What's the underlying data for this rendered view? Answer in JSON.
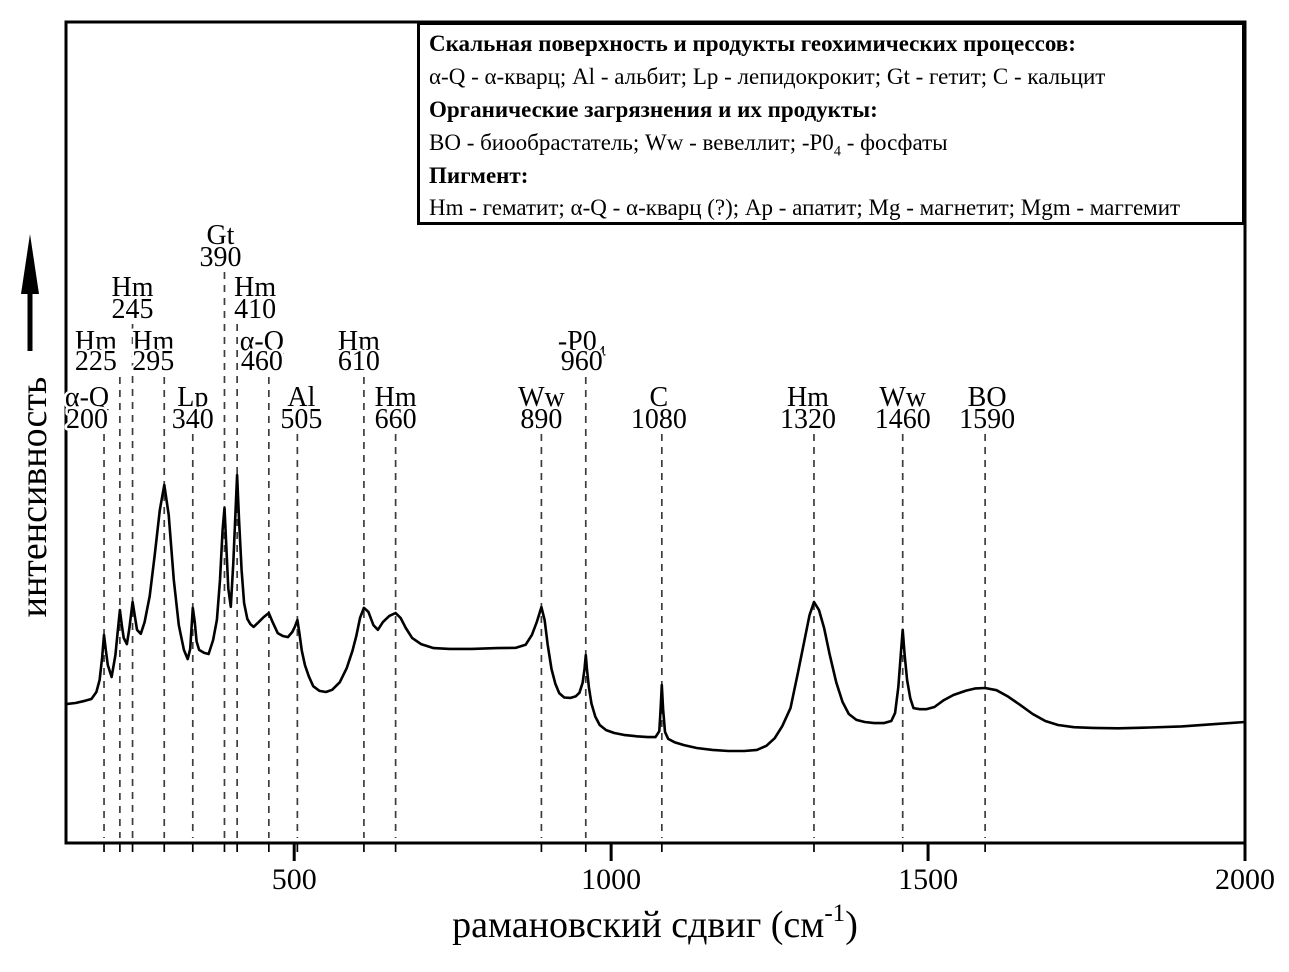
{
  "figure": {
    "background": "#ffffff",
    "ink_color": "#000000",
    "dash_color": "#3d3d3d"
  },
  "legend": {
    "line1": "Скальная поверхность и продукты геохимических процессов:",
    "line2": "α-Q - α-кварц; Al - альбит; Lp - лепидокрокит; Gt - гетит; C - кальцит",
    "line3": "Органические загрязнения и их продукты:",
    "line4_pre": "BO - биообрастатель; Ww - вевеллит; -P0",
    "line4_sub": "4",
    "line4_post": " - фосфаты",
    "line5": "Пигмент:",
    "line6": "Hm - гематит; α-Q - α-кварц (?); Ap - апатит; Mg - магнетит; Mgm - маггемит"
  },
  "chart_data": {
    "type": "line",
    "title": "",
    "xlabel_pre": "рамановский сдвиг (см",
    "xlabel_sup": "-1",
    "xlabel_post": ")",
    "ylabel": "интенсивность",
    "x_range": [
      140,
      2000
    ],
    "x_ticks": [
      500,
      1000,
      1500,
      2000
    ],
    "y_axis": "arbitrary intensity, no ticks",
    "grid": false,
    "legend_position": "top-right",
    "peaks": [
      {
        "name": "α-Q",
        "value": 200,
        "row": 3,
        "label_dx": -17
      },
      {
        "name": "Hm",
        "value": 225,
        "row": 2,
        "label_dx": -24
      },
      {
        "name": "Hm",
        "value": 245,
        "row": 1,
        "label_dx": 0
      },
      {
        "name": "Hm",
        "value": 295,
        "row": 2,
        "label_dx": -11
      },
      {
        "name": "Lp",
        "value": 340,
        "row": 3,
        "label_dx": 0
      },
      {
        "name": "Gt",
        "value": 390,
        "row": 0,
        "label_dx": -4
      },
      {
        "name": "Hm",
        "value": 410,
        "row": 1,
        "label_dx": 18
      },
      {
        "name": "α-Q",
        "value": 460,
        "row": 2,
        "label_dx": -7
      },
      {
        "name": "Al",
        "value": 505,
        "row": 3,
        "label_dx": 4
      },
      {
        "name": "Hm",
        "value": 610,
        "row": 2,
        "label_dx": -5
      },
      {
        "name": "Hm",
        "value": 660,
        "row": 3,
        "label_dx": 0
      },
      {
        "name": "Ww",
        "value": 890,
        "row": 3,
        "label_dx": 0
      },
      {
        "name": "-P0",
        "name_sub": "4",
        "value": 960,
        "row": 2,
        "label_dx": -4
      },
      {
        "name": "C",
        "value": 1080,
        "row": 3,
        "label_dx": -3
      },
      {
        "name": "Hm",
        "value": 1320,
        "row": 3,
        "label_dx": -6
      },
      {
        "name": "Ww",
        "value": 1460,
        "row": 3,
        "label_dx": 0
      },
      {
        "name": "BO",
        "value": 1590,
        "row": 3,
        "label_dx": 2
      }
    ],
    "profile": [
      [
        140,
        0.374
      ],
      [
        155,
        0.377
      ],
      [
        170,
        0.383
      ],
      [
        180,
        0.388
      ],
      [
        188,
        0.407
      ],
      [
        193,
        0.44
      ],
      [
        197,
        0.5
      ],
      [
        200,
        0.563
      ],
      [
        203,
        0.52
      ],
      [
        206,
        0.481
      ],
      [
        212,
        0.448
      ],
      [
        218,
        0.508
      ],
      [
        222,
        0.58
      ],
      [
        225,
        0.631
      ],
      [
        228,
        0.59
      ],
      [
        231,
        0.555
      ],
      [
        236,
        0.538
      ],
      [
        240,
        0.582
      ],
      [
        245,
        0.653
      ],
      [
        249,
        0.61
      ],
      [
        252,
        0.577
      ],
      [
        258,
        0.566
      ],
      [
        264,
        0.598
      ],
      [
        272,
        0.669
      ],
      [
        280,
        0.781
      ],
      [
        288,
        0.904
      ],
      [
        295,
        0.973
      ],
      [
        302,
        0.891
      ],
      [
        310,
        0.713
      ],
      [
        318,
        0.59
      ],
      [
        326,
        0.522
      ],
      [
        332,
        0.497
      ],
      [
        336,
        0.525
      ],
      [
        340,
        0.637
      ],
      [
        343,
        0.6
      ],
      [
        346,
        0.545
      ],
      [
        350,
        0.522
      ],
      [
        358,
        0.514
      ],
      [
        365,
        0.511
      ],
      [
        372,
        0.549
      ],
      [
        378,
        0.604
      ],
      [
        383,
        0.713
      ],
      [
        387,
        0.85
      ],
      [
        390,
        0.91
      ],
      [
        393,
        0.8
      ],
      [
        396,
        0.69
      ],
      [
        400,
        0.64
      ],
      [
        404,
        0.76
      ],
      [
        407,
        0.88
      ],
      [
        410,
        1.0
      ],
      [
        413,
        0.88
      ],
      [
        417,
        0.74
      ],
      [
        421,
        0.65
      ],
      [
        426,
        0.607
      ],
      [
        431,
        0.592
      ],
      [
        436,
        0.585
      ],
      [
        444,
        0.598
      ],
      [
        452,
        0.612
      ],
      [
        460,
        0.623
      ],
      [
        466,
        0.598
      ],
      [
        474,
        0.568
      ],
      [
        482,
        0.56
      ],
      [
        490,
        0.557
      ],
      [
        497,
        0.571
      ],
      [
        501,
        0.585
      ],
      [
        505,
        0.604
      ],
      [
        508,
        0.57
      ],
      [
        512,
        0.52
      ],
      [
        517,
        0.48
      ],
      [
        523,
        0.45
      ],
      [
        530,
        0.423
      ],
      [
        540,
        0.41
      ],
      [
        550,
        0.407
      ],
      [
        560,
        0.413
      ],
      [
        572,
        0.434
      ],
      [
        583,
        0.473
      ],
      [
        592,
        0.52
      ],
      [
        598,
        0.56
      ],
      [
        604,
        0.61
      ],
      [
        610,
        0.637
      ],
      [
        617,
        0.626
      ],
      [
        625,
        0.59
      ],
      [
        632,
        0.577
      ],
      [
        640,
        0.598
      ],
      [
        650,
        0.615
      ],
      [
        660,
        0.623
      ],
      [
        668,
        0.609
      ],
      [
        676,
        0.582
      ],
      [
        686,
        0.555
      ],
      [
        700,
        0.538
      ],
      [
        720,
        0.527
      ],
      [
        745,
        0.525
      ],
      [
        780,
        0.525
      ],
      [
        820,
        0.527
      ],
      [
        850,
        0.528
      ],
      [
        865,
        0.536
      ],
      [
        875,
        0.563
      ],
      [
        883,
        0.6
      ],
      [
        890,
        0.639
      ],
      [
        895,
        0.604
      ],
      [
        900,
        0.536
      ],
      [
        906,
        0.47
      ],
      [
        912,
        0.43
      ],
      [
        918,
        0.404
      ],
      [
        926,
        0.392
      ],
      [
        936,
        0.391
      ],
      [
        944,
        0.395
      ],
      [
        950,
        0.405
      ],
      [
        955,
        0.432
      ],
      [
        958,
        0.47
      ],
      [
        960,
        0.508
      ],
      [
        962,
        0.468
      ],
      [
        965,
        0.42
      ],
      [
        969,
        0.375
      ],
      [
        975,
        0.34
      ],
      [
        982,
        0.317
      ],
      [
        992,
        0.303
      ],
      [
        1005,
        0.295
      ],
      [
        1020,
        0.29
      ],
      [
        1040,
        0.286
      ],
      [
        1058,
        0.284
      ],
      [
        1070,
        0.284
      ],
      [
        1076,
        0.3
      ],
      [
        1078,
        0.36
      ],
      [
        1080,
        0.426
      ],
      [
        1082,
        0.36
      ],
      [
        1085,
        0.298
      ],
      [
        1090,
        0.279
      ],
      [
        1100,
        0.27
      ],
      [
        1115,
        0.262
      ],
      [
        1135,
        0.254
      ],
      [
        1160,
        0.249
      ],
      [
        1185,
        0.246
      ],
      [
        1210,
        0.246
      ],
      [
        1230,
        0.249
      ],
      [
        1245,
        0.26
      ],
      [
        1258,
        0.281
      ],
      [
        1270,
        0.314
      ],
      [
        1283,
        0.363
      ],
      [
        1295,
        0.462
      ],
      [
        1305,
        0.549
      ],
      [
        1313,
        0.617
      ],
      [
        1320,
        0.653
      ],
      [
        1328,
        0.631
      ],
      [
        1336,
        0.582
      ],
      [
        1345,
        0.508
      ],
      [
        1355,
        0.434
      ],
      [
        1365,
        0.38
      ],
      [
        1375,
        0.347
      ],
      [
        1387,
        0.331
      ],
      [
        1400,
        0.325
      ],
      [
        1415,
        0.322
      ],
      [
        1430,
        0.322
      ],
      [
        1442,
        0.328
      ],
      [
        1448,
        0.35
      ],
      [
        1453,
        0.42
      ],
      [
        1457,
        0.51
      ],
      [
        1460,
        0.577
      ],
      [
        1463,
        0.51
      ],
      [
        1467,
        0.44
      ],
      [
        1472,
        0.39
      ],
      [
        1477,
        0.363
      ],
      [
        1487,
        0.36
      ],
      [
        1497,
        0.36
      ],
      [
        1510,
        0.366
      ],
      [
        1525,
        0.385
      ],
      [
        1540,
        0.399
      ],
      [
        1560,
        0.411
      ],
      [
        1575,
        0.417
      ],
      [
        1590,
        0.418
      ],
      [
        1608,
        0.412
      ],
      [
        1625,
        0.396
      ],
      [
        1645,
        0.372
      ],
      [
        1665,
        0.347
      ],
      [
        1685,
        0.328
      ],
      [
        1705,
        0.317
      ],
      [
        1730,
        0.311
      ],
      [
        1760,
        0.309
      ],
      [
        1800,
        0.308
      ],
      [
        1850,
        0.31
      ],
      [
        1900,
        0.313
      ],
      [
        1950,
        0.319
      ],
      [
        2000,
        0.325
      ]
    ]
  }
}
